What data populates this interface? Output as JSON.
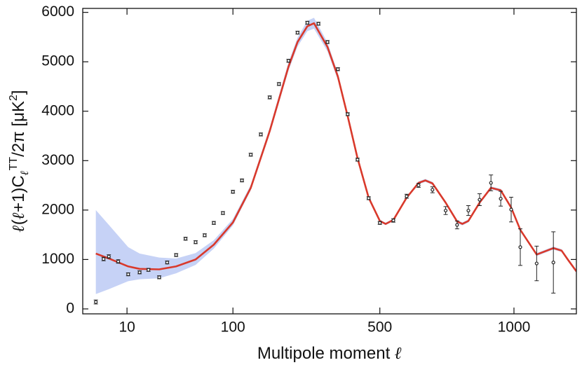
{
  "chart_data": {
    "type": "scatter",
    "xlabel": [
      "Multipole moment ",
      "ℓ"
    ],
    "ylabel": [
      "ℓ",
      "(",
      "ℓ",
      "+1)C",
      "ℓ",
      "TT",
      "/2π [μK",
      "2",
      "]"
    ],
    "xlim": [
      3.2,
      1250
    ],
    "ylim": [
      -100,
      6080
    ],
    "xticks": [
      10,
      100,
      500,
      1000
    ],
    "yticks": [
      0,
      1000,
      2000,
      3000,
      4000,
      5000,
      6000
    ],
    "model": {
      "color": "#d9392b",
      "band_color": "#c6d2f6",
      "x": [
        4.5,
        6.3,
        10.3,
        13.7,
        22,
        32.5,
        49.5,
        71,
        100,
        133,
        174,
        220,
        244,
        271,
        290,
        330,
        362,
        393,
        425,
        462,
        500,
        520,
        547,
        594,
        637,
        662,
        688,
        737,
        780,
        800,
        823,
        866,
        910,
        948,
        989,
        1025,
        1090,
        1157,
        1190,
        1215,
        1250
      ],
      "values": [
        1120,
        1020,
        860,
        810,
        800,
        860,
        1000,
        1300,
        1750,
        2450,
        3600,
        4900,
        5400,
        5720,
        5780,
        5300,
        4700,
        3900,
        3050,
        2250,
        1780,
        1720,
        1800,
        2250,
        2550,
        2600,
        2540,
        2150,
        1770,
        1720,
        1780,
        2150,
        2450,
        2400,
        2050,
        1600,
        1100,
        1230,
        1180,
        1000,
        760
      ],
      "lower": [
        300,
        400,
        560,
        600,
        620,
        720,
        890,
        1220,
        1690,
        2400,
        3540,
        4820,
        5310,
        5620,
        5670,
        5210,
        4630,
        3850,
        3010,
        2220,
        1755,
        1695,
        1775,
        2225,
        2520,
        2570,
        2510,
        2120,
        1740,
        1690,
        1750,
        2120,
        2420,
        2370,
        2020,
        1570,
        1070,
        1200,
        1150,
        970,
        730
      ],
      "upper": [
        2000,
        1700,
        1250,
        1120,
        1040,
        1020,
        1130,
        1390,
        1820,
        2510,
        3670,
        4990,
        5490,
        5830,
        5890,
        5390,
        4770,
        3950,
        3090,
        2280,
        1805,
        1745,
        1825,
        2275,
        2580,
        2630,
        2570,
        2180,
        1800,
        1750,
        1810,
        2180,
        2480,
        2430,
        2080,
        1630,
        1130,
        1260,
        1210,
        1030,
        790
      ]
    },
    "points": {
      "color": "#222222",
      "x": [
        4.5,
        5.5,
        6.3,
        8.0,
        10.3,
        13.7,
        17,
        22,
        26.5,
        32.5,
        40,
        49.5,
        59.5,
        71,
        84,
        100,
        116,
        133,
        154,
        174,
        196,
        220,
        244,
        271,
        303,
        330,
        362,
        393,
        425,
        462,
        500,
        547,
        594,
        637,
        688,
        737,
        780,
        823,
        866,
        910,
        948,
        989,
        1025,
        1090,
        1157
      ],
      "values": [
        140,
        1010,
        1060,
        960,
        700,
        740,
        790,
        640,
        940,
        1090,
        1420,
        1350,
        1490,
        1740,
        1940,
        2370,
        2600,
        3120,
        3530,
        4280,
        4550,
        5020,
        5590,
        5790,
        5770,
        5400,
        4850,
        3940,
        3020,
        2240,
        1740,
        1790,
        2280,
        2500,
        2410,
        1990,
        1700,
        1990,
        2210,
        2550,
        2230,
        2010,
        1250,
        920,
        940
      ],
      "errors": [
        40,
        35,
        35,
        35,
        30,
        30,
        30,
        30,
        30,
        30,
        30,
        30,
        30,
        30,
        30,
        30,
        30,
        30,
        30,
        30,
        30,
        30,
        30,
        30,
        30,
        30,
        30,
        30,
        30,
        30,
        30,
        35,
        40,
        40,
        60,
        80,
        80,
        100,
        120,
        160,
        150,
        250,
        370,
        350,
        620
      ]
    }
  }
}
